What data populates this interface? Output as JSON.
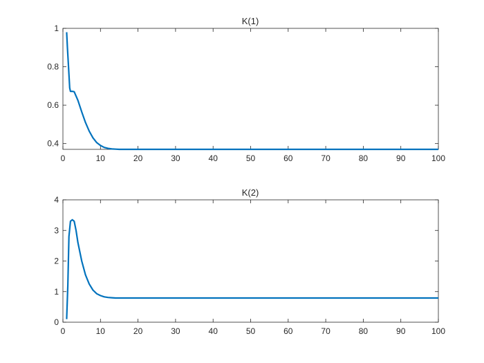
{
  "colors": {
    "line": "#0072BD",
    "axes": "#262626",
    "background": "#ffffff"
  },
  "chart_data": [
    {
      "type": "line",
      "title": "K(1)",
      "xlabel": "",
      "ylabel": "",
      "xlim": [
        0,
        100
      ],
      "ylim": [
        0.37,
        1
      ],
      "grid": false,
      "xticks": [
        0,
        10,
        20,
        30,
        40,
        50,
        60,
        70,
        80,
        90,
        100
      ],
      "yticks": [
        0.4,
        0.6,
        0.8,
        1
      ],
      "xtick_labels": [
        "0",
        "10",
        "20",
        "30",
        "40",
        "50",
        "60",
        "70",
        "80",
        "90",
        "100"
      ],
      "ytick_labels": [
        "0.4",
        "0.6",
        "0.8",
        "1"
      ],
      "series": [
        {
          "x": [
            1,
            1.2,
            1.5,
            1.8,
            2,
            2.5,
            3,
            4,
            5,
            6,
            7,
            8,
            9,
            10,
            11,
            12,
            13,
            14,
            15,
            20,
            30,
            40,
            50,
            60,
            70,
            80,
            90,
            100
          ],
          "values": [
            0.98,
            0.9,
            0.8,
            0.69,
            0.672,
            0.672,
            0.67,
            0.625,
            0.565,
            0.51,
            0.465,
            0.43,
            0.405,
            0.39,
            0.38,
            0.375,
            0.372,
            0.371,
            0.37,
            0.37,
            0.37,
            0.37,
            0.37,
            0.37,
            0.37,
            0.37,
            0.37,
            0.37
          ]
        }
      ]
    },
    {
      "type": "line",
      "title": "K(2)",
      "xlabel": "",
      "ylabel": "",
      "xlim": [
        0,
        100
      ],
      "ylim": [
        0,
        4
      ],
      "grid": false,
      "xticks": [
        0,
        10,
        20,
        30,
        40,
        50,
        60,
        70,
        80,
        90,
        100
      ],
      "yticks": [
        0,
        1,
        2,
        3,
        4
      ],
      "xtick_labels": [
        "0",
        "10",
        "20",
        "30",
        "40",
        "50",
        "60",
        "70",
        "80",
        "90",
        "100"
      ],
      "ytick_labels": [
        "0",
        "1",
        "2",
        "3",
        "4"
      ],
      "series": [
        {
          "x": [
            1,
            1.3,
            1.6,
            2,
            2.5,
            3,
            3.5,
            4,
            5,
            6,
            7,
            8,
            9,
            10,
            11,
            12,
            13,
            14,
            15,
            20,
            30,
            40,
            50,
            60,
            70,
            80,
            90,
            100
          ],
          "values": [
            0.1,
            1.2,
            2.8,
            3.3,
            3.35,
            3.3,
            3.0,
            2.6,
            2.0,
            1.55,
            1.25,
            1.05,
            0.93,
            0.87,
            0.83,
            0.81,
            0.8,
            0.79,
            0.79,
            0.79,
            0.79,
            0.79,
            0.79,
            0.79,
            0.79,
            0.79,
            0.79,
            0.79
          ]
        }
      ]
    }
  ]
}
